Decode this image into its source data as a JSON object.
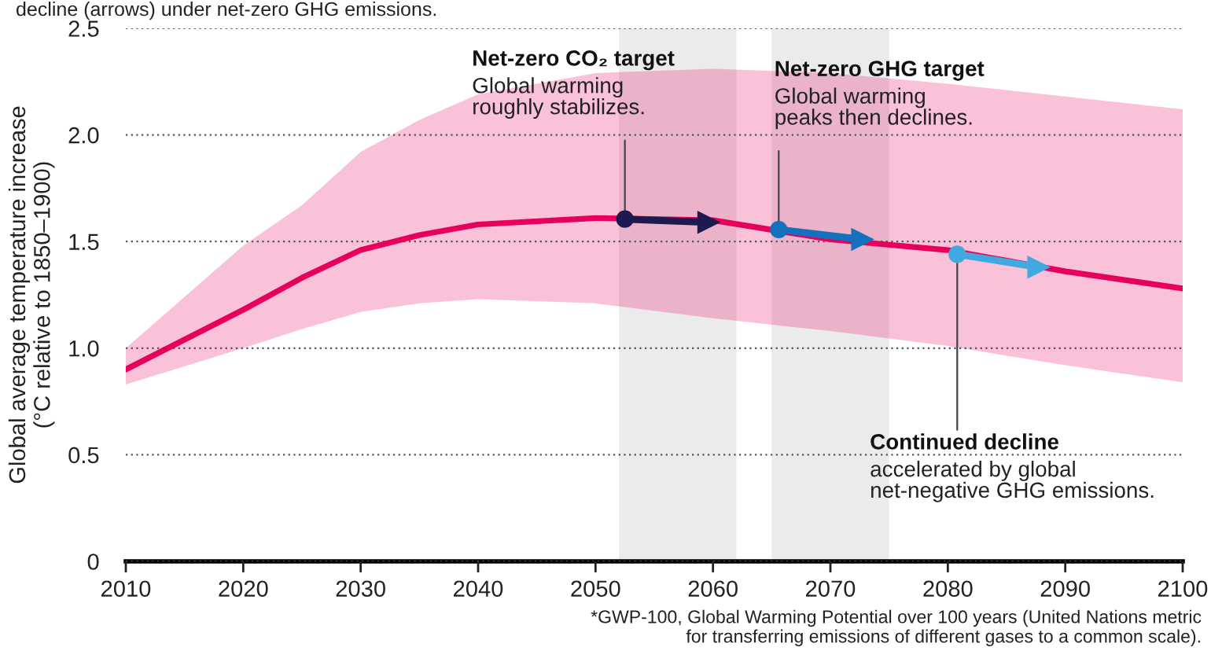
{
  "chart_data": {
    "type": "line",
    "subtitle": "decline (arrows) under net-zero GHG emissions.",
    "ylabel": "Global average temperature increase\n(°C relative to 1850–1900)",
    "x": [
      2010,
      2020,
      2025,
      2030,
      2035,
      2040,
      2050,
      2060,
      2070,
      2080,
      2090,
      2100
    ],
    "xlim": [
      2010,
      2100
    ],
    "xticks": [
      2010,
      2020,
      2030,
      2040,
      2050,
      2060,
      2070,
      2080,
      2090,
      2100
    ],
    "ylim": [
      0,
      2.5
    ],
    "yticks": [
      0,
      0.5,
      {
        "value": 1,
        "label": "1.0"
      },
      1.5,
      {
        "value": 2,
        "label": "2.0"
      },
      2.5
    ],
    "grid": "y",
    "series": [
      {
        "color": "#e6005c",
        "values": [
          0.9,
          1.18,
          1.33,
          1.46,
          1.53,
          1.58,
          1.61,
          1.6,
          1.51,
          1.46,
          1.36,
          1.28
        ],
        "lower": [
          0.83,
          1.0,
          1.09,
          1.17,
          1.21,
          1.23,
          1.21,
          1.14,
          1.08,
          1.01,
          0.92,
          0.84
        ],
        "upper": [
          1.0,
          1.48,
          1.67,
          1.92,
          2.07,
          2.19,
          2.29,
          2.31,
          2.29,
          2.24,
          2.18,
          2.12
        ]
      },
      {
        "color": "#1c1a4f",
        "x": [
          2052.5,
          2059.6
        ],
        "values": [
          1.605,
          1.59
        ],
        "marker": "circle"
      },
      {
        "color": "#1570bd",
        "x": [
          2065.6,
          2072.7
        ],
        "values": [
          1.556,
          1.51
        ],
        "marker": "circle"
      },
      {
        "color": "#40a9e0",
        "x": [
          2080.8,
          2087.7
        ],
        "values": [
          1.44,
          1.38
        ],
        "marker": "circle"
      }
    ],
    "bands": [
      {
        "axis": "x",
        "from": 2052,
        "to": 2062,
        "color": "#ebebeb"
      },
      {
        "axis": "x",
        "from": 2065,
        "to": 2075,
        "color": "#ebebeb"
      }
    ],
    "annotations": [
      {
        "text": "Net-zero CO₂ target\nGlobal warming\nroughly stabilizes.",
        "x": 2052.5,
        "y": 1.605
      },
      {
        "text": "Net-zero GHG target\nGlobal warming\npeaks then declines.",
        "x": 2065.6,
        "y": 1.556
      },
      {
        "text": "Continued decline\naccelerated by global\nnet-negative GHG emissions.",
        "x": 2080.8,
        "y": 1.44
      },
      "*GWP-100, Global Warming Potential over 100 years (United Nations metric\nfor transferring emissions of different gases to a common scale)."
    ]
  }
}
